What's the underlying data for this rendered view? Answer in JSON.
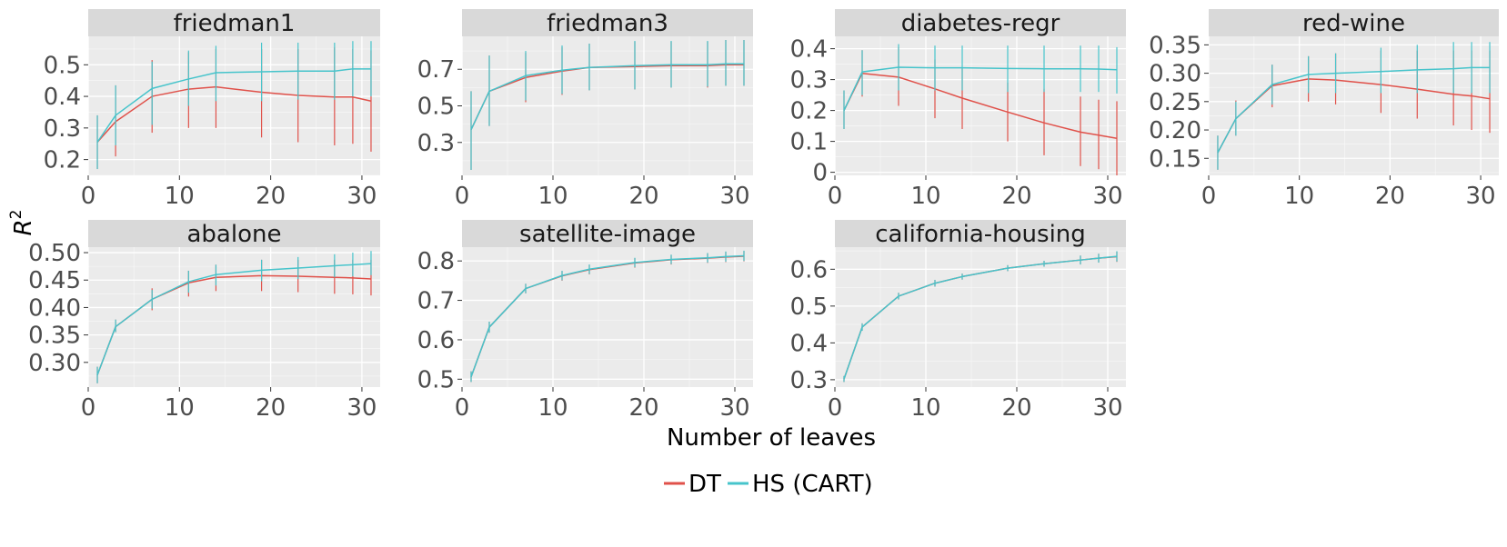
{
  "colors": {
    "DT": "#e0514a",
    "HS (CART)": "#46c4cb",
    "panel_bg": "#ebebeb",
    "strip_bg": "#d9d9d9",
    "grid": "#ffffff"
  },
  "x_label": "Number of leaves",
  "y_label": "R",
  "y_label_sup": "2",
  "legend": [
    "DT",
    "HS (CART)"
  ],
  "chart_data": [
    {
      "type": "line",
      "title": "friedman1",
      "x": [
        1,
        3,
        7,
        11,
        14,
        19,
        23,
        27,
        29,
        31
      ],
      "xlim": [
        0,
        32
      ],
      "xticks": [
        0,
        10,
        20,
        30
      ],
      "ylim": [
        0.15,
        0.59
      ],
      "yticks": [
        0.2,
        0.3,
        0.4,
        0.5
      ],
      "ytick_labels": [
        "0.2",
        "0.3",
        "0.4",
        "0.5"
      ],
      "series": [
        {
          "name": "DT",
          "values": [
            0.255,
            0.32,
            0.4,
            0.423,
            0.43,
            0.413,
            0.403,
            0.398,
            0.398,
            0.385
          ],
          "lower": [
            0.17,
            0.21,
            0.285,
            0.3,
            0.3,
            0.27,
            0.255,
            0.245,
            0.25,
            0.225
          ],
          "upper": [
            0.34,
            0.435,
            0.515,
            0.54,
            0.55,
            0.55,
            0.55,
            0.555,
            0.55,
            0.545
          ]
        },
        {
          "name": "HS (CART)",
          "values": [
            0.255,
            0.34,
            0.425,
            0.455,
            0.475,
            0.478,
            0.48,
            0.48,
            0.487,
            0.487
          ],
          "lower": [
            0.17,
            0.245,
            0.31,
            0.37,
            0.385,
            0.385,
            0.39,
            0.39,
            0.4,
            0.4
          ],
          "upper": [
            0.34,
            0.435,
            0.51,
            0.545,
            0.56,
            0.57,
            0.57,
            0.57,
            0.575,
            0.575
          ]
        }
      ]
    },
    {
      "type": "line",
      "title": "friedman3",
      "x": [
        1,
        3,
        7,
        11,
        14,
        19,
        23,
        27,
        29,
        31
      ],
      "xlim": [
        0,
        32
      ],
      "xticks": [
        0,
        10,
        20,
        30
      ],
      "ylim": [
        0.12,
        0.88
      ],
      "yticks": [
        0.3,
        0.5,
        0.7
      ],
      "ytick_labels": [
        "0.3",
        "0.5",
        "0.7"
      ],
      "series": [
        {
          "name": "DT",
          "values": [
            0.37,
            0.58,
            0.655,
            0.69,
            0.71,
            0.715,
            0.72,
            0.72,
            0.725,
            0.725
          ],
          "lower": [
            0.15,
            0.39,
            0.52,
            0.56,
            0.585,
            0.59,
            0.6,
            0.6,
            0.61,
            0.61
          ],
          "upper": [
            0.58,
            0.775,
            0.79,
            0.82,
            0.84,
            0.85,
            0.85,
            0.85,
            0.86,
            0.86
          ]
        },
        {
          "name": "HS (CART)",
          "values": [
            0.37,
            0.58,
            0.665,
            0.695,
            0.71,
            0.72,
            0.725,
            0.725,
            0.73,
            0.73
          ],
          "lower": [
            0.15,
            0.39,
            0.53,
            0.565,
            0.585,
            0.59,
            0.6,
            0.605,
            0.61,
            0.61
          ],
          "upper": [
            0.58,
            0.775,
            0.8,
            0.83,
            0.84,
            0.855,
            0.855,
            0.855,
            0.86,
            0.86
          ]
        }
      ]
    },
    {
      "type": "line",
      "title": "diabetes-regr",
      "x": [
        1,
        3,
        7,
        11,
        14,
        19,
        23,
        27,
        29,
        31
      ],
      "xlim": [
        0,
        32
      ],
      "xticks": [
        0,
        10,
        20,
        30
      ],
      "ylim": [
        -0.01,
        0.44
      ],
      "yticks": [
        0,
        0.1,
        0.2,
        0.3,
        0.4
      ],
      "ytick_labels": [
        "0",
        "0.1",
        "0.2",
        "0.3",
        "0.4"
      ],
      "series": [
        {
          "name": "DT",
          "values": [
            0.2,
            0.32,
            0.308,
            0.27,
            0.24,
            0.195,
            0.16,
            0.13,
            0.12,
            0.11
          ],
          "lower": [
            0.14,
            0.245,
            0.215,
            0.175,
            0.14,
            0.1,
            0.055,
            0.02,
            0.01,
            -0.01
          ],
          "upper": [
            0.265,
            0.395,
            0.405,
            0.365,
            0.34,
            0.29,
            0.27,
            0.245,
            0.235,
            0.23
          ]
        },
        {
          "name": "HS (CART)",
          "values": [
            0.2,
            0.325,
            0.34,
            0.338,
            0.338,
            0.336,
            0.335,
            0.335,
            0.334,
            0.332
          ],
          "lower": [
            0.14,
            0.25,
            0.265,
            0.265,
            0.265,
            0.26,
            0.26,
            0.26,
            0.26,
            0.255
          ],
          "upper": [
            0.265,
            0.395,
            0.415,
            0.41,
            0.41,
            0.41,
            0.41,
            0.41,
            0.41,
            0.405
          ]
        }
      ]
    },
    {
      "type": "line",
      "title": "red-wine",
      "x": [
        1,
        3,
        7,
        11,
        14,
        19,
        23,
        27,
        29,
        31
      ],
      "xlim": [
        0,
        32
      ],
      "xticks": [
        0,
        10,
        20,
        30
      ],
      "ylim": [
        0.12,
        0.365
      ],
      "yticks": [
        0.15,
        0.2,
        0.25,
        0.3,
        0.35
      ],
      "ytick_labels": [
        "0.15",
        "0.20",
        "0.25",
        "0.30",
        "0.35"
      ],
      "series": [
        {
          "name": "DT",
          "values": [
            0.16,
            0.22,
            0.278,
            0.29,
            0.288,
            0.28,
            0.272,
            0.263,
            0.26,
            0.255
          ],
          "lower": [
            0.13,
            0.19,
            0.24,
            0.25,
            0.245,
            0.23,
            0.22,
            0.208,
            0.2,
            0.195
          ],
          "upper": [
            0.19,
            0.252,
            0.315,
            0.33,
            0.335,
            0.34,
            0.34,
            0.34,
            0.34,
            0.34
          ]
        },
        {
          "name": "HS (CART)",
          "values": [
            0.16,
            0.22,
            0.28,
            0.298,
            0.3,
            0.303,
            0.306,
            0.308,
            0.31,
            0.31
          ],
          "lower": [
            0.13,
            0.19,
            0.245,
            0.265,
            0.265,
            0.265,
            0.265,
            0.265,
            0.265,
            0.265
          ],
          "upper": [
            0.19,
            0.25,
            0.315,
            0.33,
            0.335,
            0.345,
            0.35,
            0.355,
            0.355,
            0.355
          ]
        }
      ]
    },
    {
      "type": "line",
      "title": "abalone",
      "x": [
        1,
        3,
        7,
        11,
        14,
        19,
        23,
        27,
        29,
        31
      ],
      "xlim": [
        0,
        32
      ],
      "xticks": [
        0,
        10,
        20,
        30
      ],
      "ylim": [
        0.255,
        0.51
      ],
      "yticks": [
        0.3,
        0.35,
        0.4,
        0.45,
        0.5
      ],
      "ytick_labels": [
        "0.30",
        "0.35",
        "0.40",
        "0.45",
        "0.50"
      ],
      "series": [
        {
          "name": "DT",
          "values": [
            0.277,
            0.365,
            0.415,
            0.445,
            0.455,
            0.458,
            0.457,
            0.455,
            0.454,
            0.452
          ],
          "lower": [
            0.262,
            0.355,
            0.395,
            0.42,
            0.43,
            0.43,
            0.428,
            0.425,
            0.424,
            0.422
          ],
          "upper": [
            0.292,
            0.378,
            0.435,
            0.467,
            0.478,
            0.487,
            0.487,
            0.487,
            0.487,
            0.487
          ]
        },
        {
          "name": "HS (CART)",
          "values": [
            0.277,
            0.365,
            0.415,
            0.447,
            0.46,
            0.468,
            0.472,
            0.476,
            0.478,
            0.48
          ],
          "lower": [
            0.262,
            0.355,
            0.398,
            0.427,
            0.44,
            0.448,
            0.452,
            0.455,
            0.457,
            0.459
          ],
          "upper": [
            0.292,
            0.378,
            0.432,
            0.467,
            0.478,
            0.487,
            0.492,
            0.497,
            0.5,
            0.503
          ]
        }
      ]
    },
    {
      "type": "line",
      "title": "satellite-image",
      "x": [
        1,
        3,
        7,
        11,
        14,
        19,
        23,
        27,
        29,
        31
      ],
      "xlim": [
        0,
        32
      ],
      "xticks": [
        0,
        10,
        20,
        30
      ],
      "ylim": [
        0.48,
        0.835
      ],
      "yticks": [
        0.5,
        0.6,
        0.7,
        0.8
      ],
      "ytick_labels": [
        "0.5",
        "0.6",
        "0.7",
        "0.8"
      ],
      "series": [
        {
          "name": "DT",
          "values": [
            0.506,
            0.632,
            0.73,
            0.762,
            0.778,
            0.795,
            0.803,
            0.807,
            0.81,
            0.812
          ],
          "lower": [
            0.493,
            0.618,
            0.718,
            0.75,
            0.766,
            0.783,
            0.791,
            0.795,
            0.797,
            0.799
          ],
          "upper": [
            0.52,
            0.646,
            0.742,
            0.774,
            0.79,
            0.807,
            0.815,
            0.82,
            0.823,
            0.825
          ]
        },
        {
          "name": "HS (CART)",
          "values": [
            0.506,
            0.632,
            0.73,
            0.763,
            0.779,
            0.796,
            0.804,
            0.808,
            0.811,
            0.813
          ],
          "lower": [
            0.493,
            0.618,
            0.718,
            0.751,
            0.767,
            0.784,
            0.792,
            0.796,
            0.798,
            0.8
          ],
          "upper": [
            0.52,
            0.646,
            0.742,
            0.775,
            0.791,
            0.808,
            0.816,
            0.82,
            0.824,
            0.826
          ]
        }
      ]
    },
    {
      "type": "line",
      "title": "california-housing",
      "x": [
        1,
        3,
        7,
        11,
        14,
        19,
        23,
        27,
        29,
        31
      ],
      "xlim": [
        0,
        32
      ],
      "xticks": [
        0,
        10,
        20,
        30
      ],
      "ylim": [
        0.28,
        0.66
      ],
      "yticks": [
        0.3,
        0.4,
        0.5,
        0.6
      ],
      "ytick_labels": [
        "0.3",
        "0.4",
        "0.5",
        "0.6"
      ],
      "series": [
        {
          "name": "DT",
          "values": [
            0.302,
            0.443,
            0.527,
            0.562,
            0.58,
            0.603,
            0.615,
            0.625,
            0.63,
            0.634
          ],
          "lower": [
            0.294,
            0.433,
            0.518,
            0.553,
            0.572,
            0.595,
            0.607,
            0.613,
            0.618,
            0.62
          ],
          "upper": [
            0.31,
            0.453,
            0.536,
            0.571,
            0.588,
            0.611,
            0.623,
            0.637,
            0.642,
            0.648
          ]
        },
        {
          "name": "HS (CART)",
          "values": [
            0.302,
            0.443,
            0.527,
            0.562,
            0.58,
            0.603,
            0.615,
            0.625,
            0.63,
            0.635
          ],
          "lower": [
            0.294,
            0.433,
            0.518,
            0.553,
            0.572,
            0.595,
            0.607,
            0.613,
            0.618,
            0.621
          ],
          "upper": [
            0.31,
            0.453,
            0.536,
            0.571,
            0.588,
            0.611,
            0.623,
            0.637,
            0.642,
            0.649
          ]
        }
      ]
    }
  ]
}
